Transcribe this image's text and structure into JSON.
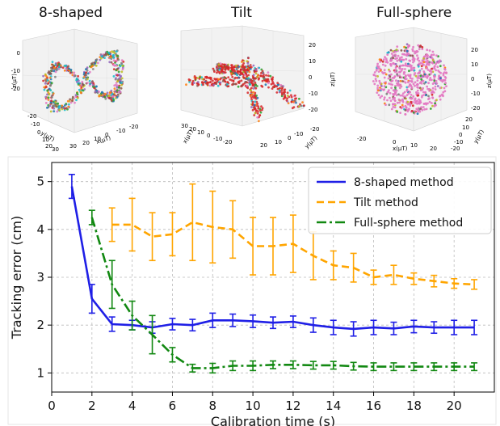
{
  "panels": [
    {
      "title": "8-shaped",
      "axis_labels": [
        "x(μT)",
        "y(μT)",
        "z(μT)"
      ],
      "ticks_a": [
        "-20",
        "-10",
        "0",
        "10",
        "20",
        "30"
      ],
      "ticks_b": [
        "30",
        "20",
        "10",
        "0",
        "-10",
        "-20"
      ],
      "ticks_z": [
        "0",
        "-10",
        "-20"
      ]
    },
    {
      "title": "Tilt",
      "axis_labels": [
        "x(μT)",
        "y(μT)",
        "z(μT)"
      ],
      "ticks_a": [
        "30",
        "20",
        "10",
        "0",
        "-10",
        "-20"
      ],
      "ticks_b": [
        "20",
        "10",
        "0",
        "-10",
        "-20"
      ],
      "ticks_z": [
        "20",
        "10",
        "0",
        "-10",
        "-20"
      ]
    },
    {
      "title": "Full-sphere",
      "axis_labels": [
        "x(μT)",
        "y(μT)",
        "z(μT)"
      ],
      "ticks_a": [
        "-20",
        "0",
        "10",
        "20"
      ],
      "ticks_b": [
        "20",
        "10",
        "0",
        "-10",
        "-20"
      ],
      "ticks_z": [
        "20",
        "10",
        "0",
        "-10",
        "-20"
      ]
    }
  ],
  "chart_data": {
    "type": "line",
    "xlabel": "Calibration time (s)",
    "ylabel": "Tracking error (cm)",
    "xlim": [
      0,
      22
    ],
    "ylim": [
      0.6,
      5.4
    ],
    "xticks": [
      0,
      2,
      4,
      6,
      8,
      10,
      12,
      14,
      16,
      18,
      20
    ],
    "yticks": [
      1,
      2,
      3,
      4,
      5
    ],
    "grid": true,
    "legend_position": "top-right",
    "series": [
      {
        "name": "8-shaped method",
        "color": "#1f1fe6",
        "dash": "solid",
        "x": [
          1,
          2,
          3,
          4,
          5,
          6,
          7,
          8,
          9,
          10,
          11,
          12,
          13,
          14,
          15,
          16,
          17,
          18,
          19,
          20,
          21
        ],
        "y": [
          4.9,
          2.55,
          2.02,
          2.0,
          1.95,
          2.02,
          2.0,
          2.1,
          2.1,
          2.08,
          2.05,
          2.07,
          2.0,
          1.95,
          1.92,
          1.95,
          1.93,
          1.97,
          1.95,
          1.95,
          1.95
        ],
        "err": [
          0.25,
          0.3,
          0.15,
          0.1,
          0.12,
          0.12,
          0.12,
          0.15,
          0.13,
          0.13,
          0.12,
          0.12,
          0.15,
          0.15,
          0.15,
          0.15,
          0.13,
          0.13,
          0.12,
          0.15,
          0.15
        ]
      },
      {
        "name": "Tilt method",
        "color": "#ffa500",
        "dash": "dashed",
        "x": [
          3,
          4,
          5,
          6,
          7,
          8,
          9,
          10,
          11,
          12,
          13,
          14,
          15,
          16,
          17,
          18,
          19,
          20,
          21
        ],
        "y": [
          4.1,
          4.1,
          3.85,
          3.9,
          4.15,
          4.05,
          4.0,
          3.65,
          3.65,
          3.7,
          3.45,
          3.25,
          3.2,
          3.0,
          3.05,
          2.97,
          2.92,
          2.87,
          2.85
        ],
        "err": [
          0.35,
          0.55,
          0.5,
          0.45,
          0.8,
          0.75,
          0.6,
          0.6,
          0.6,
          0.6,
          0.5,
          0.3,
          0.3,
          0.15,
          0.2,
          0.12,
          0.12,
          0.1,
          0.1
        ]
      },
      {
        "name": "Full-sphere method",
        "color": "#118811",
        "dash": "dashdot",
        "x": [
          2,
          3,
          4,
          5,
          6,
          7,
          8,
          9,
          10,
          11,
          12,
          13,
          14,
          15,
          16,
          17,
          18,
          19,
          20,
          21
        ],
        "y": [
          4.25,
          2.85,
          2.2,
          1.8,
          1.38,
          1.1,
          1.1,
          1.15,
          1.15,
          1.17,
          1.17,
          1.16,
          1.16,
          1.14,
          1.13,
          1.13,
          1.13,
          1.13,
          1.13,
          1.13
        ],
        "err": [
          0.15,
          0.5,
          0.3,
          0.4,
          0.15,
          0.08,
          0.1,
          0.1,
          0.1,
          0.08,
          0.08,
          0.08,
          0.08,
          0.08,
          0.08,
          0.08,
          0.08,
          0.08,
          0.08,
          0.08
        ]
      }
    ]
  }
}
